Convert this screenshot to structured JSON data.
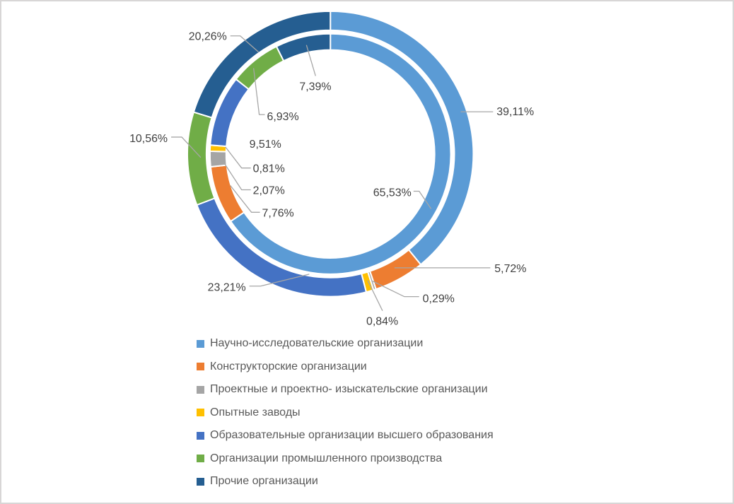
{
  "chart": {
    "background_color": "#FFFFFF",
    "frame_border_color": "#D8D6D6",
    "data_label_color": "#404040",
    "leader_line_color": "#A6A6A6",
    "legend_text_color": "#595959"
  },
  "chart_data": {
    "type": "pie",
    "variant": "double-ring-donut",
    "title": "",
    "categories": [
      "Научно-исследовательские организации",
      "Конструкторские организации",
      "Проектные и проектно- изыскательские организации",
      "Опытные заводы",
      "Образовательные организации высшего образования",
      "Организации промышленного производства",
      "Прочие организации"
    ],
    "colors": [
      "#5B9BD5",
      "#ED7D31",
      "#A5A5A5",
      "#FFC000",
      "#4472C4",
      "#70AD47",
      "#255E91"
    ],
    "series": [
      {
        "name": "outer-ring",
        "values": [
          39.11,
          5.72,
          0.29,
          0.84,
          23.21,
          10.56,
          20.26
        ],
        "labels": [
          "39,11%",
          "5,72%",
          "0,29%",
          "0,84%",
          "23,21%",
          "10,56%",
          "20,26%"
        ]
      },
      {
        "name": "inner-ring",
        "values": [
          65.53,
          7.76,
          2.07,
          0.81,
          9.51,
          6.93,
          7.39
        ],
        "labels": [
          "65,53%",
          "7,76%",
          "2,07%",
          "0,81%",
          "9,51%",
          "6,93%",
          "7,39%"
        ]
      }
    ],
    "start_angle_deg": 0,
    "direction": "clockwise",
    "data_labels": "percent with comma decimal separator, gray leader lines",
    "legend_position": "bottom-left",
    "grid": "off"
  }
}
